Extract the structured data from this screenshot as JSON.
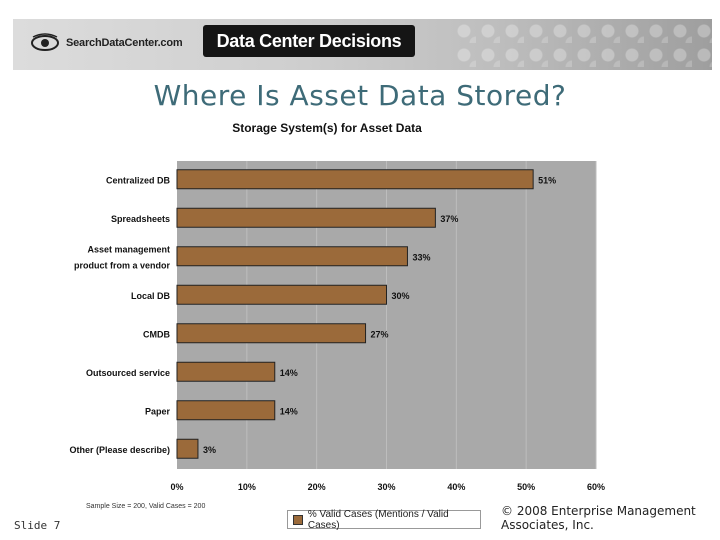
{
  "header": {
    "logo_text": "SearchDataCenter.com",
    "brand_title": "Data Center Decisions"
  },
  "slide": {
    "title": "Where Is Asset Data Stored?",
    "number_label": "Slide 7",
    "sample_note": "Sample Size = 200, Valid Cases = 200",
    "copyright": "© 2008 Enterprise Management Associates, Inc."
  },
  "chart_data": {
    "type": "bar",
    "orientation": "horizontal",
    "title": "Storage System(s) for Asset Data",
    "categories": [
      "Centralized DB",
      "Spreadsheets",
      "Asset management product from a vendor",
      "Local DB",
      "CMDB",
      "Outsourced service",
      "Paper",
      "Other (Please describe)"
    ],
    "category_lines": [
      [
        "Centralized DB"
      ],
      [
        "Spreadsheets"
      ],
      [
        "Asset management",
        "product from a vendor"
      ],
      [
        "Local DB"
      ],
      [
        "CMDB"
      ],
      [
        "Outsourced service"
      ],
      [
        "Paper"
      ],
      [
        "Other (Please describe)"
      ]
    ],
    "values": [
      51,
      37,
      33,
      30,
      27,
      14,
      14,
      3
    ],
    "value_labels": [
      "51%",
      "37%",
      "33%",
      "30%",
      "27%",
      "14%",
      "14%",
      "3%"
    ],
    "xlim": [
      0,
      60
    ],
    "x_ticks": [
      0,
      10,
      20,
      30,
      40,
      50,
      60
    ],
    "x_tick_labels": [
      "0%",
      "10%",
      "20%",
      "30%",
      "40%",
      "50%",
      "60%"
    ],
    "grid": "vertical",
    "legend": {
      "position": "bottom",
      "label": "% Valid Cases (Mentions / Valid Cases)"
    },
    "colors": {
      "bar": "#9b6a3a",
      "plot_bg": "#a9a9a9",
      "gridline": "#bdbdbd"
    }
  }
}
